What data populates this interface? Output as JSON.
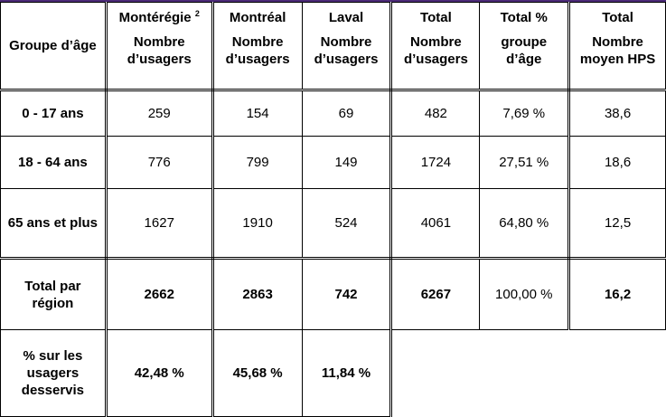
{
  "table": {
    "headers": [
      {
        "title": "Groupe d’âge",
        "sub": ""
      },
      {
        "title": "Montérégie",
        "sup": "2",
        "sub": "Nombre d’usagers"
      },
      {
        "title": "Montréal",
        "sub": "Nombre d’usagers"
      },
      {
        "title": "Laval",
        "sub": "Nombre d’usagers"
      },
      {
        "title": "Total",
        "sub": "Nombre d’usagers"
      },
      {
        "title": "Total %",
        "sub": "groupe d’âge"
      },
      {
        "title": "Total",
        "sub": "Nombre moyen HPS"
      }
    ],
    "rows": [
      {
        "label": "0 - 17 ans",
        "cells": [
          "259",
          "154",
          "69",
          "482",
          "7,69 %",
          "38,6"
        ]
      },
      {
        "label": "18 - 64 ans",
        "cells": [
          "776",
          "799",
          "149",
          "1724",
          "27,51 %",
          "18,6"
        ]
      },
      {
        "label": "65 ans et plus",
        "cells": [
          "1627",
          "1910",
          "524",
          "4061",
          "64,80 %",
          "12,5"
        ]
      },
      {
        "label": "Total par région",
        "cells": [
          "2662",
          "2863",
          "742",
          "6267",
          "100,00 %",
          "16,2"
        ]
      },
      {
        "label": "% sur les usagers desservis",
        "cells": [
          "42,48 %",
          "45,68 %",
          "11,84 %"
        ]
      }
    ]
  }
}
